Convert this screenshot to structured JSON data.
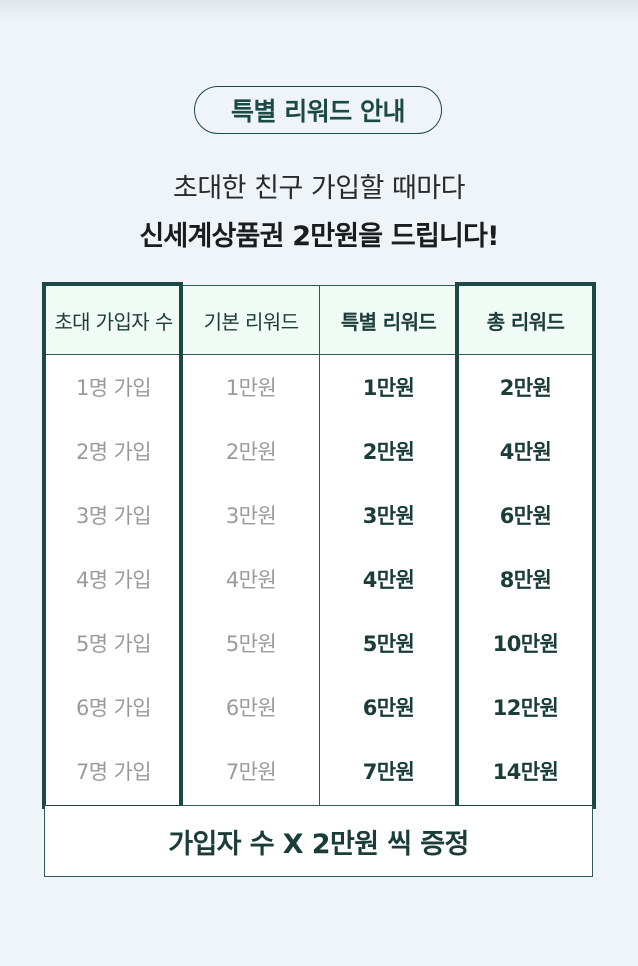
{
  "badge": "특별 리워드 안내",
  "headline": {
    "line1": "초대한 친구 가입할 때마다",
    "line2": "신세계상품권 2만원을 드립니다!"
  },
  "table": {
    "headers": [
      "초대 가입자 수",
      "기본 리워드",
      "특별 리워드",
      "총 리워드"
    ],
    "rows": [
      [
        "1명 가입",
        "1만원",
        "1만원",
        "2만원"
      ],
      [
        "2명 가입",
        "2만원",
        "2만원",
        "4만원"
      ],
      [
        "3명 가입",
        "3만원",
        "3만원",
        "6만원"
      ],
      [
        "4명 가입",
        "4만원",
        "4만원",
        "8만원"
      ],
      [
        "5명 가입",
        "5만원",
        "5만원",
        "10만원"
      ],
      [
        "6명 가입",
        "6만원",
        "6만원",
        "12만원"
      ],
      [
        "7명 가입",
        "7만원",
        "7만원",
        "14만원"
      ]
    ]
  },
  "footer": "가입자 수 X 2만원 씩 증정",
  "colors": {
    "accent": "#1d4844",
    "header_bg": "#f1fbf5",
    "page_bg": "#eef4f8",
    "muted_text": "#9a9a9a"
  }
}
